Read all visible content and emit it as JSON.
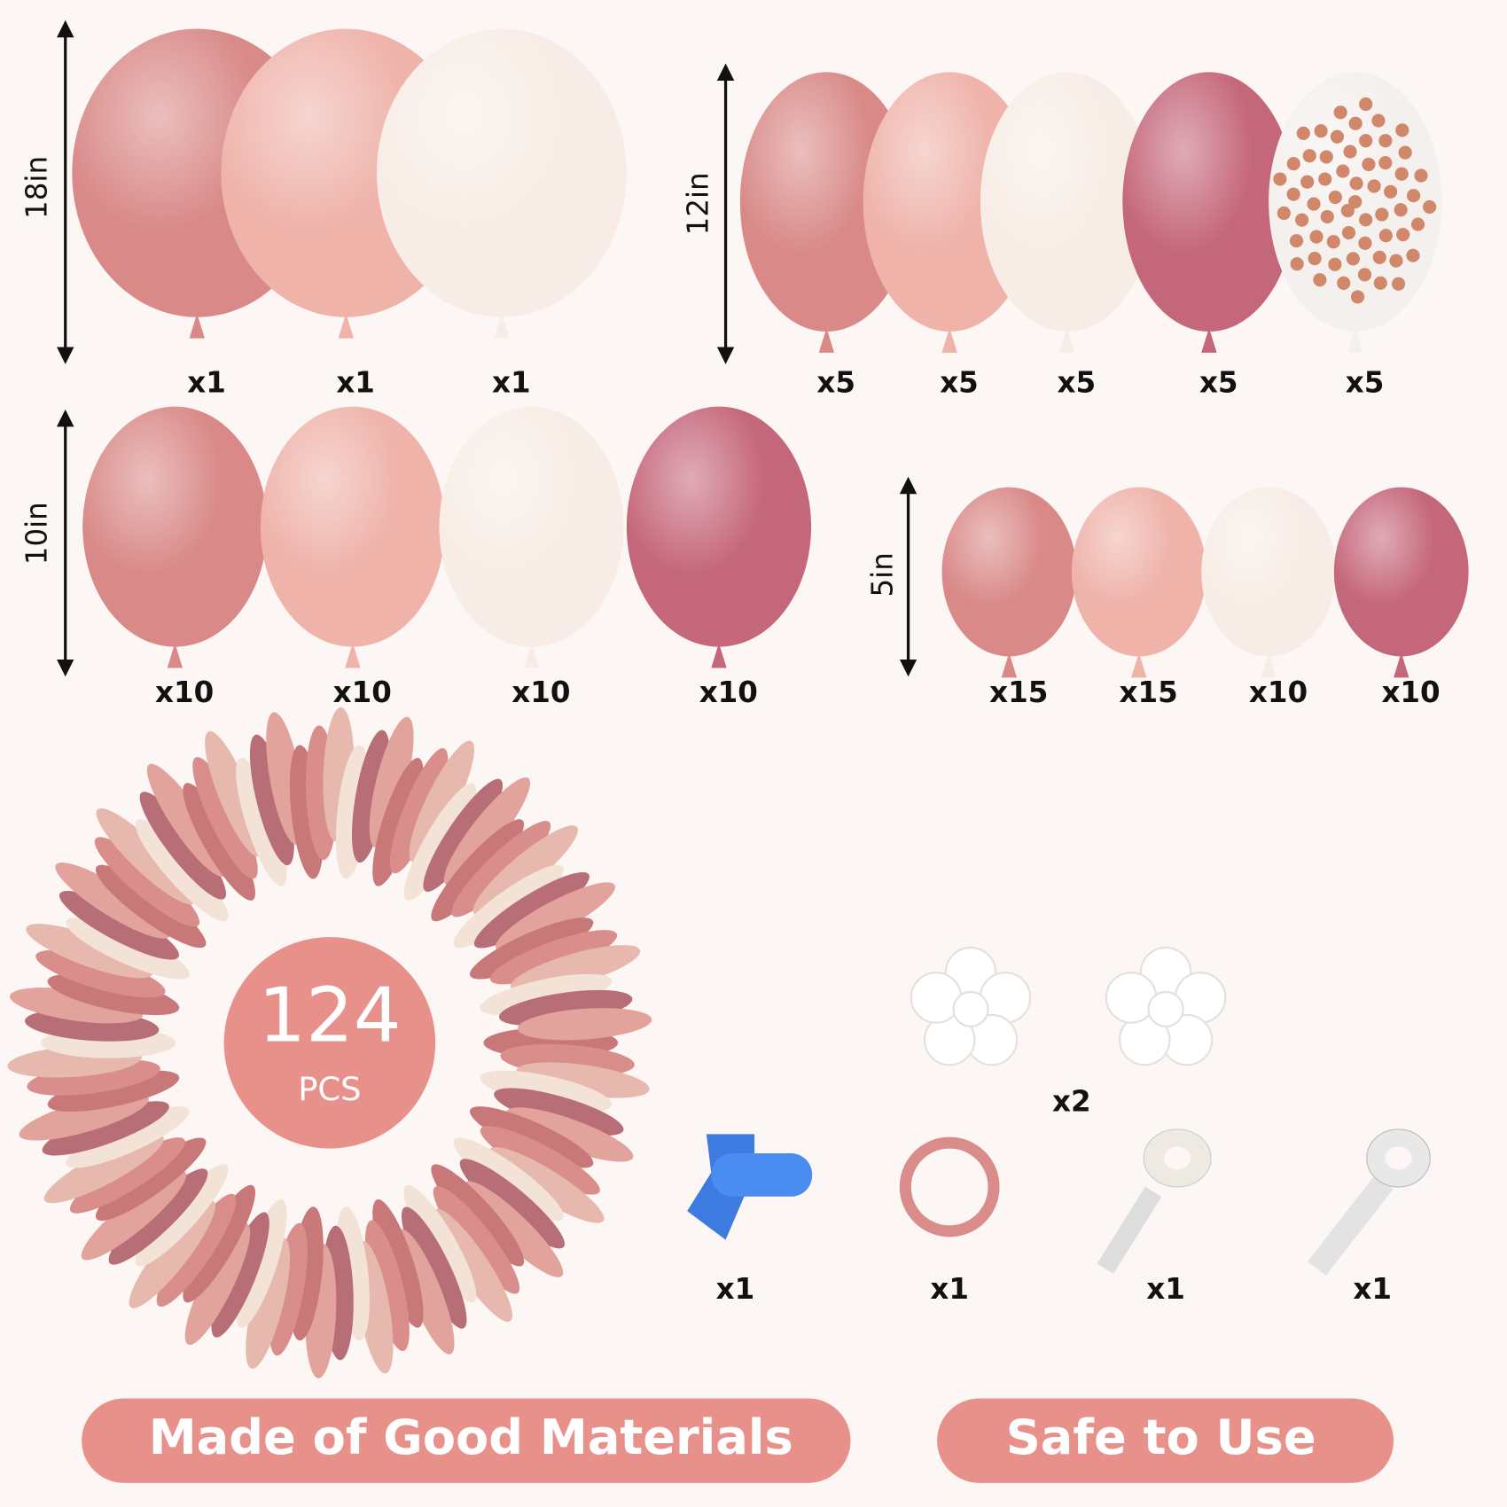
{
  "balloon_groups": [
    {
      "size": "18in",
      "counts": [
        "x1",
        "x1",
        "x1"
      ]
    },
    {
      "size": "12in",
      "counts": [
        "x5",
        "x5",
        "x5",
        "x5",
        "x5"
      ]
    },
    {
      "size": "10in",
      "counts": [
        "x10",
        "x10",
        "x10",
        "x10"
      ]
    },
    {
      "size": "5in",
      "counts": [
        "x15",
        "x15",
        "x10",
        "x10"
      ]
    }
  ],
  "total": {
    "number": "124",
    "unit": "PCS"
  },
  "accessories": {
    "clips_count": "x2",
    "tools": [
      "x1",
      "x1",
      "x1",
      "x1"
    ]
  },
  "badges": [
    "Made of Good Materials",
    "Safe to Use"
  ]
}
